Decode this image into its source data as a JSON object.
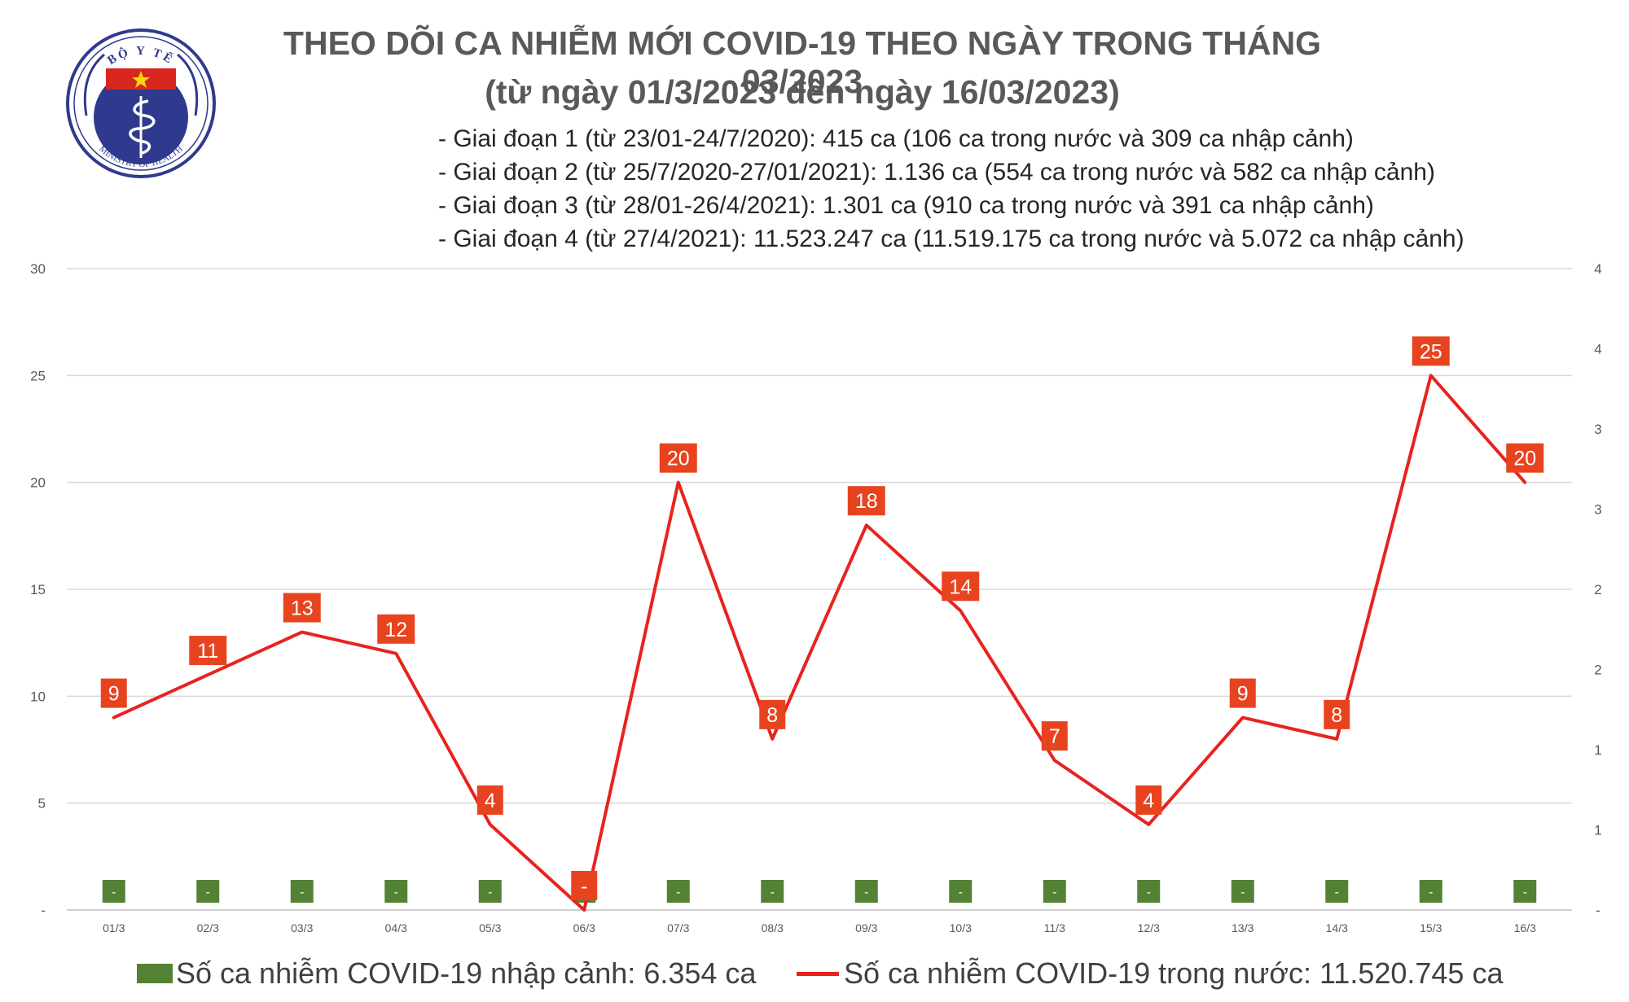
{
  "logo": {
    "top_text": "BỘ Y TẾ",
    "bottom_text": "MINISTRY OF HEALTH",
    "colors": {
      "blue": "#2f3a8f",
      "red": "#d7261e",
      "star": "#f5d90a"
    }
  },
  "title_line1": "THEO DÕI CA NHIỄM MỚI COVID-19 THEO NGÀY TRONG THÁNG 03/2023",
  "title_line2": "(từ ngày 01/3/2023 đến ngày 16/03/2023)",
  "phases": [
    "- Giai đoạn 1 (từ 23/01-24/7/2020): 415 ca (106 ca trong nước và 309 ca nhập cảnh)",
    "- Giai đoạn 2 (từ 25/7/2020-27/01/2021): 1.136 ca (554 ca trong nước và 582 ca nhập cảnh)",
    "- Giai đoạn 3 (từ 28/01-26/4/2021): 1.301 ca (910 ca trong nước và 391 ca nhập cảnh)",
    "- Giai đoạn 4 (từ 27/4/2021): 11.523.247 ca (11.519.175 ca trong nước và 5.072 ca nhập cảnh)"
  ],
  "chart_data": {
    "type": "line",
    "categories": [
      "01/3",
      "02/3",
      "03/3",
      "04/3",
      "05/3",
      "06/3",
      "07/3",
      "08/3",
      "09/3",
      "10/3",
      "11/3",
      "12/3",
      "13/3",
      "14/3",
      "15/3",
      "16/3"
    ],
    "series": [
      {
        "name": "Số ca nhiễm COVID-19 nhập cảnh: 6.354 ca",
        "type": "bar",
        "axis": "right",
        "color": "#548235",
        "values": [
          0,
          0,
          0,
          0,
          0,
          0,
          0,
          0,
          0,
          0,
          0,
          0,
          0,
          0,
          0,
          0
        ],
        "labels": [
          "-",
          "-",
          "-",
          "-",
          "-",
          "-",
          "-",
          "-",
          "-",
          "-",
          "-",
          "-",
          "-",
          "-",
          "-",
          "-"
        ]
      },
      {
        "name": "Số ca nhiễm COVID-19 trong nước: 11.520.745 ca",
        "type": "line",
        "axis": "left",
        "color": "#e8231f",
        "values": [
          9,
          11,
          13,
          12,
          4,
          0,
          20,
          8,
          18,
          14,
          7,
          4,
          9,
          8,
          25,
          20
        ],
        "labels": [
          "9",
          "11",
          "13",
          "12",
          "4",
          "-",
          "20",
          "8",
          "18",
          "14",
          "7",
          "4",
          "9",
          "8",
          "25",
          "20"
        ]
      }
    ],
    "left_axis": {
      "ylim": [
        0,
        30
      ],
      "ticks": [
        "-",
        "5",
        "10",
        "15",
        "20",
        "25",
        "30"
      ]
    },
    "right_axis": {
      "ticks": [
        "-",
        "1",
        "1",
        "2",
        "2",
        "3",
        "3",
        "4",
        "4"
      ]
    },
    "grid": true,
    "legend_position": "bottom",
    "label_box_color": "#e8431f"
  }
}
